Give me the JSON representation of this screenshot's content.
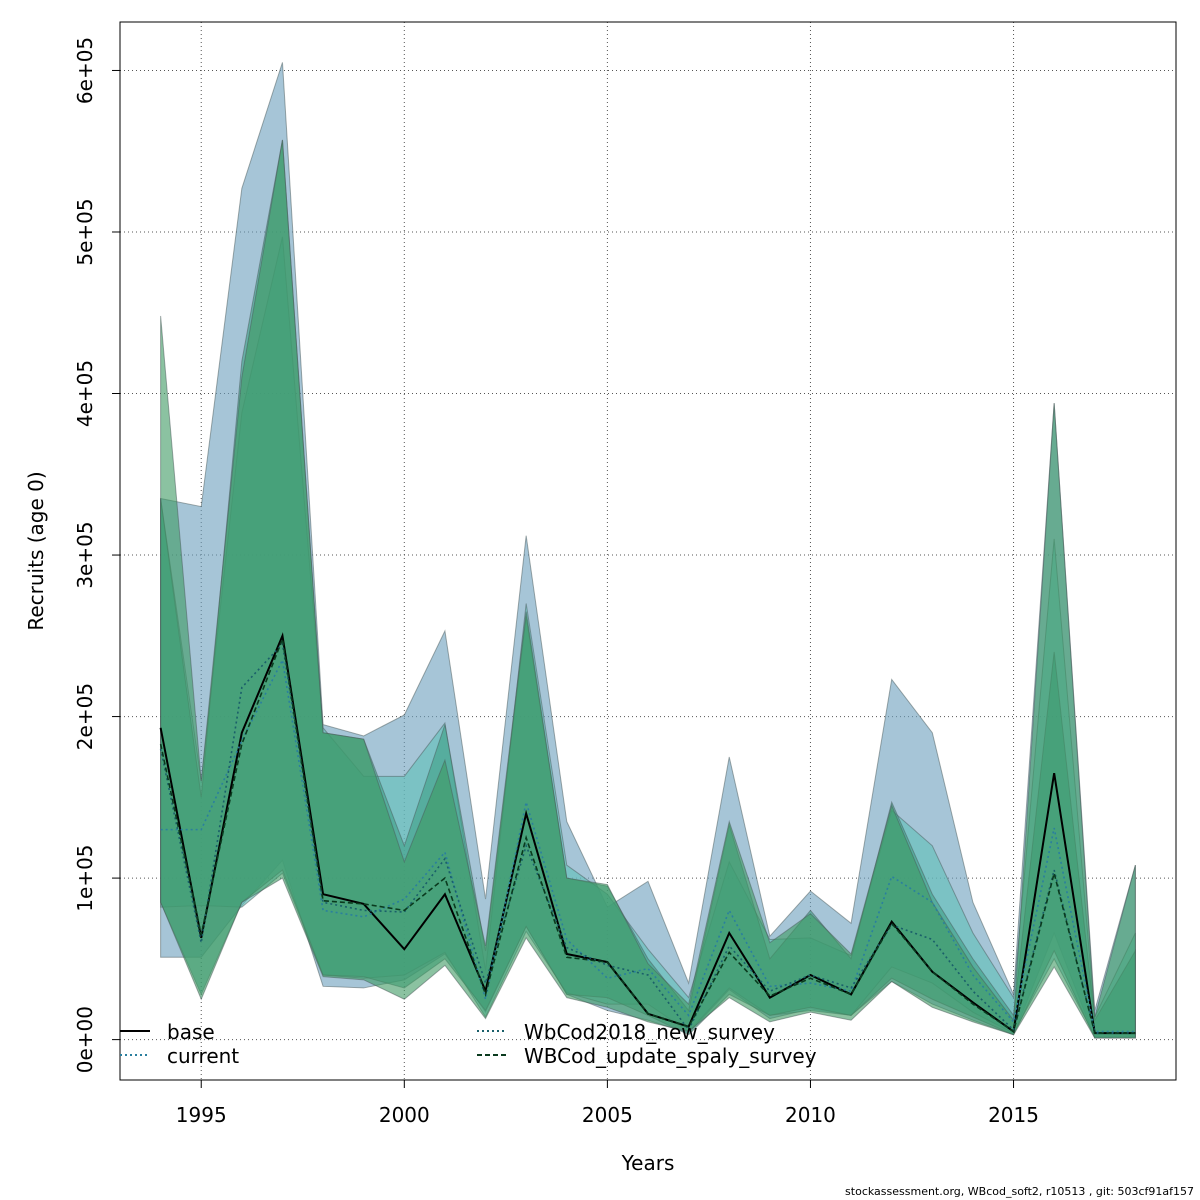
{
  "footer": "stockassessment.org, WBcod_soft2, r10513 , git: 503cf91af157",
  "chart_data": {
    "type": "line",
    "xlabel": "Years",
    "ylabel": "Recruits (age 0)",
    "xlim": [
      1993,
      2019
    ],
    "ylim": [
      -25000,
      630000
    ],
    "x_ticks": [
      1995,
      2000,
      2005,
      2010,
      2015
    ],
    "x_tick_labels": [
      "1995",
      "2000",
      "2005",
      "2010",
      "2015"
    ],
    "y_ticks": [
      0,
      100000,
      200000,
      300000,
      400000,
      500000,
      600000
    ],
    "y_tick_labels": [
      "0e+00",
      "1e+05",
      "2e+05",
      "3e+05",
      "4e+05",
      "5e+05",
      "6e+05"
    ],
    "grid": true,
    "legend_position": "bottom",
    "x": [
      1994,
      1995,
      1996,
      1997,
      1998,
      1999,
      2000,
      2001,
      2002,
      2003,
      2004,
      2005,
      2006,
      2007,
      2008,
      2009,
      2010,
      2011,
      2012,
      2013,
      2014,
      2015,
      2016,
      2017,
      2018
    ],
    "series": [
      {
        "name": "base",
        "line_color": "#000000",
        "dash": "solid",
        "band_color": "#6a9fbd",
        "values": [
          193000,
          63000,
          190000,
          250000,
          90000,
          84000,
          56000,
          90000,
          30000,
          140000,
          53000,
          48000,
          16000,
          8000,
          66000,
          26000,
          40000,
          28000,
          73000,
          42000,
          23000,
          5000,
          165000,
          4000,
          4000
        ],
        "lower": [
          51000,
          51000,
          83000,
          111000,
          33000,
          32000,
          37000,
          53000,
          17000,
          70000,
          28000,
          18000,
          12000,
          4000,
          31000,
          13000,
          19000,
          15000,
          36000,
          22000,
          12000,
          3000,
          66000,
          1000,
          1000
        ],
        "upper": [
          335000,
          330000,
          527000,
          605000,
          195000,
          188000,
          201000,
          253000,
          87000,
          312000,
          135000,
          82000,
          98000,
          35000,
          175000,
          64000,
          92000,
          72000,
          223000,
          190000,
          85000,
          28000,
          394000,
          18000,
          108000
        ]
      },
      {
        "name": "current",
        "line_color": "#2a7f9e",
        "dash": "dotted",
        "band_color": "#5fbfb8",
        "values": [
          130000,
          130000,
          185000,
          235000,
          80000,
          76000,
          87000,
          116000,
          25000,
          147000,
          62000,
          38000,
          44000,
          15000,
          80000,
          33000,
          35000,
          30000,
          101000,
          85000,
          40000,
          11000,
          131000,
          5000,
          5000
        ],
        "lower": [
          82000,
          83000,
          82000,
          103000,
          40000,
          38000,
          40000,
          54000,
          14000,
          67000,
          29000,
          22000,
          22000,
          5000,
          32000,
          15000,
          18000,
          15000,
          45000,
          35000,
          17000,
          4000,
          50000,
          2000,
          2000
        ],
        "upper": [
          335000,
          160000,
          388000,
          497000,
          193000,
          163000,
          163000,
          196000,
          43000,
          270000,
          108000,
          90000,
          56000,
          26000,
          110000,
          62000,
          63000,
          52000,
          142000,
          120000,
          66000,
          26000,
          310000,
          14000,
          66000
        ]
      },
      {
        "name": "WbCod2018_new_survey",
        "line_color": "#1a5f6a",
        "dash": "dotted",
        "band_color": "#3d9e85",
        "values": [
          180000,
          60000,
          218000,
          245000,
          85000,
          80000,
          79000,
          112000,
          35000,
          120000,
          57000,
          46000,
          40000,
          6000,
          58000,
          30000,
          40000,
          32000,
          71000,
          62000,
          30000,
          6000,
          105000,
          4000,
          4000
        ],
        "lower": [
          85000,
          28000,
          85000,
          105000,
          40000,
          39000,
          32000,
          50000,
          18000,
          70000,
          28000,
          26000,
          15000,
          3000,
          28000,
          15000,
          20000,
          15000,
          38000,
          25000,
          14000,
          3000,
          55000,
          1000,
          1000
        ],
        "upper": [
          335000,
          150000,
          420000,
          557000,
          190000,
          186000,
          120000,
          195000,
          55000,
          262000,
          100000,
          95000,
          50000,
          18000,
          133000,
          50000,
          80000,
          50000,
          147000,
          90000,
          50000,
          15000,
          240000,
          12000,
          55000
        ]
      },
      {
        "name": "WBCod_update_spaly_survey",
        "line_color": "#0a3a1e",
        "dash": "dashed",
        "band_color": "#3e9a62",
        "values": [
          183000,
          65000,
          183000,
          248000,
          86000,
          84000,
          80000,
          100000,
          28000,
          125000,
          51000,
          48000,
          16000,
          8000,
          54000,
          27000,
          38000,
          28000,
          72000,
          42000,
          22000,
          5000,
          103000,
          4000,
          4000
        ],
        "lower": [
          85000,
          25000,
          85000,
          100000,
          39000,
          37000,
          25000,
          46000,
          13000,
          63000,
          26000,
          20000,
          11000,
          5000,
          26000,
          11000,
          17000,
          12000,
          36000,
          20000,
          11000,
          3000,
          45000,
          1000,
          1000
        ],
        "upper": [
          448000,
          160000,
          410000,
          557000,
          190000,
          186000,
          110000,
          173000,
          58000,
          265000,
          100000,
          96000,
          47000,
          22000,
          135000,
          60000,
          78000,
          53000,
          145000,
          85000,
          45000,
          12000,
          394000,
          14000,
          108000
        ]
      }
    ]
  }
}
